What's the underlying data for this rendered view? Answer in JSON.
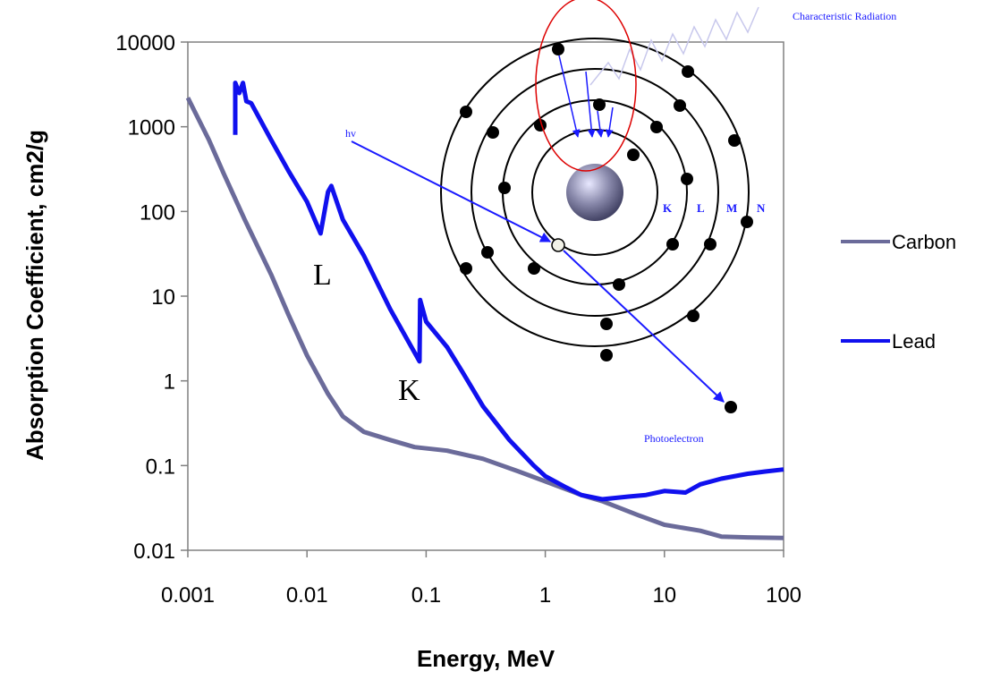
{
  "chart_data": {
    "type": "line",
    "xlabel": "Energy, MeV",
    "ylabel": "Absorption Coefficient, cm2/g",
    "xscale": "log",
    "yscale": "log",
    "xlim": [
      0.001,
      100
    ],
    "ylim": [
      0.01,
      10000
    ],
    "x_ticks": [
      "0.001",
      "0.01",
      "0.1",
      "1",
      "10",
      "100"
    ],
    "y_ticks": [
      "0.01",
      "0.1",
      "1",
      "10",
      "100",
      "1000",
      "10000"
    ],
    "legend_position": "right",
    "series": [
      {
        "name": "Carbon",
        "color": "#6b6b9a",
        "points": [
          [
            0.001,
            2200
          ],
          [
            0.0015,
            700
          ],
          [
            0.002,
            280
          ],
          [
            0.003,
            80
          ],
          [
            0.005,
            18
          ],
          [
            0.007,
            6
          ],
          [
            0.01,
            2
          ],
          [
            0.015,
            0.7
          ],
          [
            0.02,
            0.38
          ],
          [
            0.03,
            0.25
          ],
          [
            0.05,
            0.2
          ],
          [
            0.08,
            0.165
          ],
          [
            0.15,
            0.15
          ],
          [
            0.3,
            0.12
          ],
          [
            0.6,
            0.085
          ],
          [
            1,
            0.065
          ],
          [
            2,
            0.045
          ],
          [
            3,
            0.038
          ],
          [
            6,
            0.026
          ],
          [
            10,
            0.02
          ],
          [
            20,
            0.017
          ],
          [
            30,
            0.0145
          ],
          [
            50,
            0.0142
          ],
          [
            100,
            0.014
          ]
        ]
      },
      {
        "name": "Lead",
        "color": "#1010ee",
        "points": [
          [
            0.0025,
            800
          ],
          [
            0.0025,
            3300
          ],
          [
            0.0027,
            2500
          ],
          [
            0.0029,
            3300
          ],
          [
            0.0031,
            2000
          ],
          [
            0.0034,
            1900
          ],
          [
            0.005,
            700
          ],
          [
            0.007,
            300
          ],
          [
            0.01,
            130
          ],
          [
            0.013,
            55
          ],
          [
            0.015,
            170
          ],
          [
            0.016,
            200
          ],
          [
            0.02,
            80
          ],
          [
            0.03,
            30
          ],
          [
            0.05,
            7
          ],
          [
            0.088,
            1.7
          ],
          [
            0.089,
            9
          ],
          [
            0.1,
            5
          ],
          [
            0.15,
            2.5
          ],
          [
            0.2,
            1.3
          ],
          [
            0.3,
            0.5
          ],
          [
            0.5,
            0.2
          ],
          [
            0.8,
            0.1
          ],
          [
            1,
            0.075
          ],
          [
            1.5,
            0.055
          ],
          [
            2,
            0.045
          ],
          [
            3,
            0.04
          ],
          [
            5,
            0.043
          ],
          [
            7,
            0.045
          ],
          [
            10,
            0.05
          ],
          [
            15,
            0.048
          ],
          [
            20,
            0.06
          ],
          [
            30,
            0.07
          ],
          [
            50,
            0.08
          ],
          [
            70,
            0.085
          ],
          [
            100,
            0.09
          ]
        ]
      }
    ],
    "annotations": {
      "l_edge": "L",
      "k_edge": "K"
    }
  },
  "inset": {
    "top_label": "Characteristic Radiation",
    "hv_label": "hv",
    "photoelectron_label": "Photoelectron",
    "shell_labels": [
      "K",
      "L",
      "M",
      "N"
    ]
  }
}
